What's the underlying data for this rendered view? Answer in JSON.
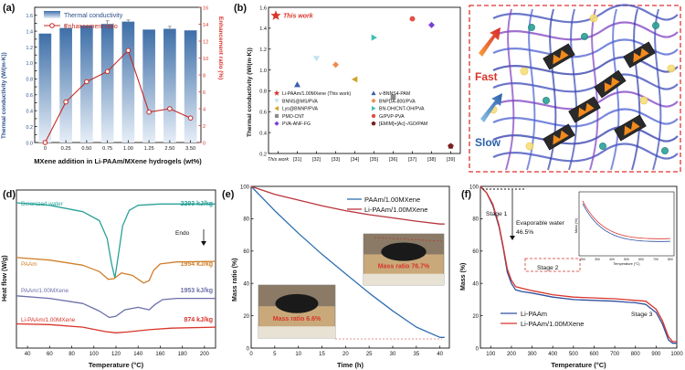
{
  "chart_data": [
    {
      "panel": "(a)",
      "type": "bar+line",
      "categories": [
        "0",
        "0.25",
        "0.50",
        "0.75",
        "1.00",
        "1.25",
        "2.50",
        "3.50"
      ],
      "xlabel": "MXene addition in Li-PAAm/MXene hydrogels (wt%)",
      "ylabel": "Thermal conductivity (W/(m·K))",
      "y2label": "Enhancement ratio (%)",
      "ylim": [
        0.0,
        1.7
      ],
      "y2lim": [
        0,
        16
      ],
      "yticks": [
        "0.0",
        "0.1",
        "0.2",
        "0.3",
        "0.4",
        "0.5",
        "0.6",
        "0.7",
        "0.8",
        "0.9",
        "1.0",
        "1.1",
        "1.2",
        "1.3",
        "1.4",
        "1.5",
        "1.6",
        "1.7"
      ],
      "y2ticks": [
        "0",
        "2",
        "4",
        "6",
        "8",
        "10",
        "12",
        "14",
        "16"
      ],
      "series": [
        {
          "name": "Thermal conductivity",
          "kind": "bar",
          "values": [
            1.37,
            1.44,
            1.47,
            1.49,
            1.52,
            1.42,
            1.43,
            1.41
          ],
          "errors": [
            0.0,
            0.03,
            0.0,
            0.04,
            0.02,
            0.0,
            0.03,
            0.0
          ]
        },
        {
          "name": "Enhancement ratio",
          "kind": "line",
          "values": [
            0.0,
            4.8,
            7.2,
            8.4,
            10.9,
            3.6,
            4.0,
            2.9
          ]
        }
      ],
      "colors": {
        "bar": "#5f8fc4",
        "line": "#d9342b"
      }
    },
    {
      "panel": "(b)",
      "type": "scatter",
      "ylabel": "Thermal conductivity (W/(m·K))",
      "ylim": [
        0.2,
        1.6
      ],
      "yticks": [
        "0.2",
        "0.4",
        "0.6",
        "0.8",
        "1.0",
        "1.2",
        "1.4",
        "1.6"
      ],
      "categories": [
        "This work",
        "[31]",
        "[32]",
        "[33]",
        "[34]",
        "[35]",
        "[36]",
        "[37]",
        "[38]",
        "[39]"
      ],
      "annotation": "This work",
      "points": [
        {
          "name": "Li-PAAm/1.00MXene (This work)",
          "cat": "This work",
          "y": 1.52,
          "marker": "star",
          "color": "#d9342b"
        },
        {
          "name": "v-BNNS4-PAM",
          "cat": "[31]",
          "y": 0.86,
          "marker": "triangle-up",
          "color": "#3a5fb0"
        },
        {
          "name": "BNNS@MS/PVA",
          "cat": "[32]",
          "y": 1.11,
          "marker": "triangle-down",
          "color": "#bfe4ef"
        },
        {
          "name": "BNPDA-800/PVA",
          "cat": "[33]",
          "y": 1.05,
          "marker": "diamond",
          "color": "#f08b50"
        },
        {
          "name": "Lys@BNNP/PVA",
          "cat": "[34]",
          "y": 0.91,
          "marker": "triangle-left",
          "color": "#d4a12a"
        },
        {
          "name": "BN-OH/CNT-OH/PVA",
          "cat": "[35]",
          "y": 1.31,
          "marker": "triangle-right",
          "color": "#3fbfb0"
        },
        {
          "name": "PMO-CNT",
          "cat": "[36]",
          "y": 0.74,
          "marker": "square",
          "color": "#8c8c8c"
        },
        {
          "name": "G/PVP-PVA",
          "cat": "[37]",
          "y": 1.49,
          "marker": "circle",
          "color": "#e0524a"
        },
        {
          "name": "PVA-ANF-FG",
          "cat": "[38]",
          "y": 1.43,
          "marker": "diamond",
          "color": "#7a3fd6"
        },
        {
          "name": "[EMIM]+[Ac]−/GO/PAM",
          "cat": "[39]",
          "y": 0.27,
          "marker": "pentagon",
          "color": "#7a1f1f"
        }
      ]
    },
    {
      "panel": "(c)",
      "type": "schematic",
      "labels": {
        "fast": "Fast",
        "slow": "Slow"
      }
    },
    {
      "panel": "(d)",
      "type": "line",
      "xlabel": "Temperature (°C)",
      "ylabel": "Heat flow (W/g)",
      "xlim": [
        30,
        210
      ],
      "xticks": [
        "40",
        "60",
        "80",
        "100",
        "120",
        "140",
        "160",
        "180",
        "200"
      ],
      "annotation": "Endo",
      "series": [
        {
          "name": "Deionized water",
          "enthalpy": "2293 kJ/kg",
          "color": "#2aa198",
          "x": [
            30,
            60,
            90,
            105,
            112,
            116,
            119,
            122,
            126,
            132,
            140,
            160,
            180,
            210
          ],
          "y": [
            5.7,
            5.6,
            5.35,
            5.0,
            4.3,
            3.3,
            2.75,
            3.6,
            4.8,
            5.4,
            5.6,
            5.65,
            5.65,
            5.65
          ]
        },
        {
          "name": "PAAm",
          "enthalpy": "1954 kJ/kg",
          "color": "#cf7f2a",
          "x": [
            30,
            60,
            90,
            105,
            113,
            118,
            125,
            135,
            145,
            150,
            154,
            160,
            175,
            210
          ],
          "y": [
            3.55,
            3.45,
            3.25,
            3.0,
            2.7,
            2.72,
            2.95,
            2.85,
            2.55,
            2.65,
            3.05,
            3.3,
            3.38,
            3.4
          ]
        },
        {
          "name": "PAAm/1.00MXene",
          "enthalpy": "1953 kJ/kg",
          "color": "#6a6fa8",
          "x": [
            30,
            60,
            90,
            105,
            114,
            120,
            128,
            140,
            150,
            155,
            162,
            175,
            210
          ],
          "y": [
            2.05,
            1.95,
            1.75,
            1.45,
            1.2,
            1.25,
            1.5,
            1.6,
            1.5,
            1.7,
            1.9,
            1.95,
            1.95
          ]
        },
        {
          "name": "Li-PAAm/1.00MXene",
          "enthalpy": "874 kJ/kg",
          "color": "#d9342b",
          "x": [
            30,
            60,
            90,
            110,
            120,
            130,
            150,
            170,
            210
          ],
          "y": [
            0.95,
            0.92,
            0.82,
            0.65,
            0.6,
            0.63,
            0.72,
            0.78,
            0.82
          ]
        }
      ]
    },
    {
      "panel": "(e)",
      "type": "line",
      "xlabel": "Time (h)",
      "ylabel": "Mass ratio (%)",
      "xlim": [
        0,
        42
      ],
      "ylim": [
        0,
        100
      ],
      "xticks": [
        "0",
        "5",
        "10",
        "15",
        "20",
        "25",
        "30",
        "35",
        "40"
      ],
      "yticks": [
        "0",
        "20",
        "40",
        "60",
        "80",
        "100"
      ],
      "series": [
        {
          "name": "PAAm/1.00MXene",
          "color": "#2f6fb0",
          "x": [
            0,
            5,
            10,
            15,
            20,
            25,
            30,
            35,
            40,
            41
          ],
          "y": [
            100,
            85,
            71,
            58,
            46,
            34,
            23,
            13,
            6.6,
            6.6
          ]
        },
        {
          "name": "Li-PAAm/1.00MXene",
          "color": "#b8343d",
          "x": [
            0,
            5,
            10,
            15,
            20,
            25,
            30,
            35,
            40,
            41
          ],
          "y": [
            100,
            95,
            91.5,
            88,
            85,
            82.5,
            80.5,
            78.5,
            76.7,
            76.7
          ]
        }
      ],
      "annotations": [
        "Mass ratio 76.7%",
        "Mass ratio 6.6%"
      ]
    },
    {
      "panel": "(f)",
      "type": "line",
      "xlabel": "Temperature (°C)",
      "ylabel": "Mass (%)",
      "xlim": [
        50,
        1000
      ],
      "ylim": [
        0,
        100
      ],
      "xticks": [
        "100",
        "200",
        "300",
        "400",
        "500",
        "600",
        "700",
        "800",
        "900",
        "1000"
      ],
      "yticks": [
        "0",
        "20",
        "40",
        "60",
        "80",
        "100"
      ],
      "annotations": [
        "Stage 1",
        "Evaporable water",
        "46.5%",
        "Stage 2",
        "Stage 3"
      ],
      "series": [
        {
          "name": "Li-PAAm",
          "color": "#2f4f9f",
          "x": [
            50,
            80,
            110,
            140,
            160,
            180,
            200,
            220,
            250,
            300,
            400,
            500,
            600,
            700,
            750,
            800,
            850,
            900,
            930,
            960,
            980,
            1000
          ],
          "y": [
            100,
            96,
            88,
            75,
            62,
            47,
            40,
            36,
            35,
            34,
            31.5,
            30,
            29.5,
            29,
            28.5,
            28,
            27,
            22,
            15,
            5,
            3,
            3
          ]
        },
        {
          "name": "Li-PAAm/1.00MXene",
          "color": "#d9342b",
          "x": [
            50,
            80,
            110,
            140,
            160,
            180,
            200,
            220,
            250,
            300,
            400,
            500,
            600,
            700,
            750,
            800,
            850,
            900,
            930,
            960,
            980,
            1000
          ],
          "y": [
            100,
            96,
            89,
            76,
            63,
            49,
            42,
            38,
            37,
            35.5,
            33,
            31.5,
            31,
            30.5,
            30,
            29.5,
            29,
            24,
            17,
            7,
            4,
            4
          ]
        }
      ],
      "inset": {
        "xlabel": "Temperature (°C)",
        "ylabel": "Mass (%)",
        "xticks": [
          "200",
          "300",
          "400",
          "500",
          "600",
          "700",
          "800"
        ]
      }
    }
  ]
}
